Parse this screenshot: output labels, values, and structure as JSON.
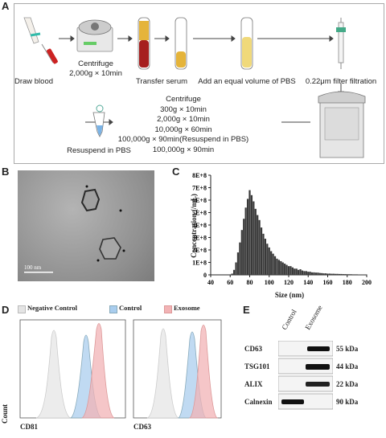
{
  "panels": {
    "a": "A",
    "b": "B",
    "c": "C",
    "d": "D",
    "e": "E"
  },
  "workflow": {
    "steps": [
      {
        "label": "Draw blood"
      },
      {
        "label": "Centrifuge\n2,000g × 10min"
      },
      {
        "label": "Transfer serum"
      },
      {
        "label": "Add an equal volume of PBS"
      },
      {
        "label": "0.22μm filter filtration"
      }
    ],
    "centrifuge_steps": [
      "Centrifuge",
      "300g × 10min",
      "2,000g × 10min",
      "10,000g × 60min",
      "100,000g × 90min(Resuspend in PBS)",
      "100,000g × 90min"
    ],
    "resuspend": "Resuspend in PBS"
  },
  "tem": {
    "scale_bar": "100 nm"
  },
  "chart_data": {
    "type": "bar",
    "xlabel": "Size (nm)",
    "ylabel": "Concentration (/mL)",
    "x_ticks": [
      "40",
      "60",
      "80",
      "100",
      "120",
      "140",
      "160",
      "180",
      "200"
    ],
    "y_ticks": [
      "0",
      "1E+8",
      "2E+8",
      "3E+8",
      "4E+8",
      "5E+8",
      "6E+8",
      "7E+8",
      "8E+8"
    ],
    "xlim": [
      40,
      200
    ],
    "ylim": [
      0,
      800000000
    ],
    "x": [
      62,
      64,
      66,
      68,
      70,
      72,
      74,
      76,
      78,
      80,
      82,
      84,
      86,
      88,
      90,
      92,
      94,
      96,
      98,
      100,
      102,
      104,
      106,
      108,
      110,
      112,
      114,
      116,
      118,
      120,
      122,
      124,
      126,
      128,
      130,
      132,
      134,
      136,
      138,
      140,
      142,
      144,
      146,
      148,
      150,
      152,
      154,
      156,
      158,
      160,
      162,
      164,
      166,
      168,
      170,
      172,
      174,
      176,
      178,
      180,
      182,
      184,
      186,
      188,
      190,
      192,
      194,
      196,
      198,
      200
    ],
    "values": [
      10000000,
      40000000,
      100000000,
      180000000,
      260000000,
      360000000,
      450000000,
      540000000,
      610000000,
      680000000,
      640000000,
      590000000,
      530000000,
      480000000,
      440000000,
      380000000,
      330000000,
      290000000,
      250000000,
      220000000,
      190000000,
      170000000,
      150000000,
      130000000,
      120000000,
      110000000,
      100000000,
      90000000,
      80000000,
      70000000,
      70000000,
      60000000,
      50000000,
      50000000,
      40000000,
      45000000,
      35000000,
      30000000,
      30000000,
      25000000,
      25000000,
      20000000,
      20000000,
      18000000,
      18000000,
      15000000,
      14000000,
      12000000,
      12000000,
      10000000,
      10000000,
      9000000,
      9000000,
      8000000,
      8000000,
      7000000,
      7000000,
      6000000,
      6000000,
      5000000,
      5000000,
      5000000,
      4000000,
      4000000,
      4000000,
      3000000,
      3000000,
      3000000,
      3000000,
      2000000
    ]
  },
  "flow": {
    "legend": [
      {
        "label": "Negative Control",
        "color": "#e4e4e4"
      },
      {
        "label": "Control",
        "color": "#a9cdee"
      },
      {
        "label": "Exosome",
        "color": "#f2b3b5"
      }
    ],
    "ylabel": "Count",
    "markers": [
      "CD81",
      "CD63"
    ]
  },
  "western": {
    "columns": [
      "Control",
      "Exosome"
    ],
    "rows": [
      {
        "protein": "CD63",
        "size": "55 kDa"
      },
      {
        "protein": "TSG101",
        "size": "44 kDa"
      },
      {
        "protein": "ALIX",
        "size": "22 kDa"
      },
      {
        "protein": "Calnexin",
        "size": "90 kDa"
      }
    ]
  }
}
